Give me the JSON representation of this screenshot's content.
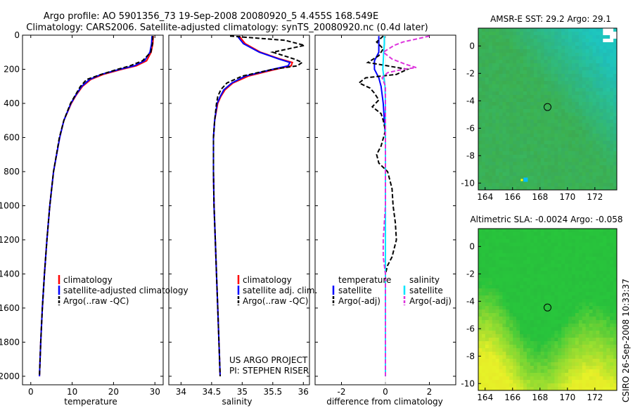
{
  "header": {
    "line1": "Argo profile: AO 5901356_73 19-Sep-2008 20080920_5 4.455S 168.549E",
    "line2": "Climatology: CARS2006. Satellite-adjusted climatology: synTS_20080920.nc (0.4d later)"
  },
  "credit": "CSIRO 26-Sep-2008 10:33:37",
  "colors": {
    "climatology": "#ff0000",
    "satellite": "#0000ff",
    "argo": "#000000",
    "salinity_satellite": "#00e5ff",
    "salinity_argo": "#dd33dd",
    "map_ocean": "#2fbf4f",
    "map_land": "#ffffff"
  },
  "chart_data": [
    {
      "type": "line",
      "name": "temperature-profile",
      "xlabel": "temperature",
      "xlim": [
        -2,
        32
      ],
      "xticks": [
        0,
        10,
        20,
        30
      ],
      "ylim": [
        2050,
        0
      ],
      "yticks": [
        0,
        200,
        400,
        600,
        800,
        1000,
        1200,
        1400,
        1600,
        1800,
        2000
      ],
      "legend": [
        "climatology",
        "satellite-adjusted climatology",
        "Argo(..raw -QC)"
      ],
      "series": [
        {
          "name": "climatology",
          "depth": [
            5,
            50,
            100,
            150,
            180,
            200,
            230,
            260,
            300,
            350,
            400,
            500,
            600,
            800,
            1000,
            1200,
            1400,
            1600,
            1800,
            2000
          ],
          "values": [
            29.6,
            29.5,
            29.1,
            28.0,
            25.5,
            22.0,
            17.5,
            14.5,
            12.5,
            11.0,
            9.8,
            8.0,
            7.0,
            5.5,
            4.6,
            3.9,
            3.3,
            2.8,
            2.4,
            2.1
          ]
        },
        {
          "name": "satellite-adjusted climatology",
          "depth": [
            5,
            50,
            100,
            150,
            180,
            200,
            230,
            260,
            300,
            350,
            400,
            500,
            600,
            800,
            1000,
            1200,
            1400,
            1600,
            1800,
            2000
          ],
          "values": [
            29.3,
            29.2,
            28.8,
            27.5,
            25.0,
            21.5,
            17.0,
            14.2,
            12.3,
            10.9,
            9.7,
            8.0,
            7.0,
            5.5,
            4.6,
            3.9,
            3.3,
            2.8,
            2.4,
            2.1
          ]
        },
        {
          "name": "Argo(..raw -QC)",
          "depth": [
            5,
            50,
            100,
            150,
            180,
            200,
            230,
            260,
            300,
            350,
            400,
            500,
            600,
            800,
            1000,
            1200,
            1400,
            1600,
            1800,
            2000
          ],
          "values": [
            29.5,
            29.4,
            29.0,
            27.0,
            24.0,
            21.0,
            17.0,
            13.5,
            12.0,
            10.8,
            9.6,
            8.0,
            6.9,
            5.5,
            4.6,
            3.9,
            3.3,
            2.8,
            2.4,
            2.1
          ]
        }
      ]
    },
    {
      "type": "line",
      "name": "salinity-profile",
      "xlabel": "salinity",
      "xlim": [
        33.8,
        36.1
      ],
      "xticks": [
        34,
        34.5,
        35,
        35.5,
        36
      ],
      "ylim": [
        2050,
        0
      ],
      "legend": [
        "climatology",
        "satellite adj. clim.",
        "Argo(..raw -QC)"
      ],
      "annotation": [
        "US ARGO PROJECT",
        "PI: STEPHEN RISER"
      ],
      "series": [
        {
          "name": "climatology",
          "depth": [
            5,
            50,
            100,
            140,
            160,
            180,
            200,
            240,
            280,
            320,
            360,
            400,
            500,
            600,
            800,
            1000,
            1200,
            1400,
            1600,
            1800,
            2000
          ],
          "values": [
            34.95,
            35.05,
            35.3,
            35.62,
            35.82,
            35.8,
            35.55,
            35.1,
            34.85,
            34.72,
            34.65,
            34.6,
            34.55,
            34.53,
            34.53,
            34.54,
            34.56,
            34.58,
            34.6,
            34.62,
            34.64
          ]
        },
        {
          "name": "satellite adj. clim.",
          "depth": [
            5,
            50,
            100,
            140,
            160,
            180,
            200,
            240,
            280,
            320,
            360,
            400,
            500,
            600,
            800,
            1000,
            1200,
            1400,
            1600,
            1800,
            2000
          ],
          "values": [
            34.92,
            35.02,
            35.28,
            35.6,
            35.78,
            35.75,
            35.5,
            35.05,
            34.83,
            34.7,
            34.64,
            34.59,
            34.55,
            34.53,
            34.53,
            34.54,
            34.56,
            34.58,
            34.6,
            34.62,
            34.64
          ]
        },
        {
          "name": "Argo(..raw -QC)",
          "depth": [
            5,
            30,
            60,
            100,
            140,
            160,
            180,
            200,
            240,
            280,
            320,
            360,
            400,
            500,
            600,
            800,
            1000,
            1200,
            1400,
            1600,
            1800,
            2000
          ],
          "values": [
            34.8,
            35.7,
            36.02,
            35.5,
            35.85,
            35.98,
            35.9,
            35.5,
            35.0,
            34.75,
            34.65,
            34.6,
            34.58,
            34.55,
            34.53,
            34.53,
            34.54,
            34.56,
            34.58,
            34.6,
            34.62,
            34.64
          ]
        }
      ]
    },
    {
      "type": "line",
      "name": "difference-profile",
      "xlabel": "difference from climatology",
      "xlim": [
        -3.2,
        3.2
      ],
      "xticks": [
        -2,
        0,
        2
      ],
      "ylim": [
        2050,
        0
      ],
      "legend_headers": [
        "temperature",
        "salinity"
      ],
      "legend": [
        "satellite",
        "Argo(-adj)",
        "satellite",
        "Argo(-adj)"
      ],
      "series": [
        {
          "name": "temperature satellite",
          "depth": [
            5,
            50,
            100,
            150,
            200,
            250,
            300,
            400,
            600,
            800,
            1000,
            1200,
            1400,
            1600,
            1800,
            2000
          ],
          "values": [
            -0.3,
            -0.3,
            -0.3,
            -0.5,
            -0.5,
            -0.3,
            -0.2,
            -0.1,
            0,
            0,
            0,
            0,
            0,
            0,
            0,
            0
          ]
        },
        {
          "name": "temperature Argo(-adj)",
          "depth": [
            5,
            40,
            80,
            120,
            160,
            200,
            230,
            250,
            280,
            310,
            340,
            380,
            420,
            460,
            500,
            560,
            650,
            700,
            750,
            800,
            850,
            900,
            1000,
            1100,
            1200,
            1300,
            1350,
            1400,
            1500,
            1600,
            1800,
            2000
          ],
          "values": [
            -0.1,
            -0.4,
            -0.1,
            -0.3,
            -0.8,
            1.0,
            0.5,
            -0.9,
            -1.2,
            -0.7,
            -0.5,
            -0.3,
            -0.6,
            -0.2,
            -0.1,
            0,
            -0.2,
            -0.4,
            -0.3,
            0.1,
            0.2,
            0.3,
            0.35,
            0.45,
            0.5,
            0.3,
            0.1,
            0,
            0,
            0,
            0,
            0
          ]
        },
        {
          "name": "salinity satellite",
          "depth": [
            5,
            50,
            100,
            150,
            200,
            300,
            400,
            600,
            800,
            1000,
            1200,
            1400,
            1600,
            1800,
            2000
          ],
          "values": [
            -0.05,
            -0.05,
            -0.08,
            -0.1,
            -0.12,
            -0.02,
            0,
            0,
            0,
            0,
            0,
            0,
            0,
            0,
            0
          ]
        },
        {
          "name": "salinity Argo(-adj)",
          "depth": [
            5,
            20,
            40,
            60,
            100,
            140,
            170,
            190,
            200,
            220,
            250,
            300,
            400,
            600,
            800,
            1000,
            1200,
            1300,
            1400,
            1600,
            1800,
            2000
          ],
          "values": [
            2.0,
            1.5,
            0.8,
            0.4,
            -0.1,
            0.3,
            0.9,
            1.4,
            0.8,
            0.1,
            -0.15,
            0,
            0,
            0,
            0,
            0,
            -0.1,
            -0.1,
            0,
            0,
            0,
            0
          ]
        }
      ]
    },
    {
      "type": "heatmap",
      "name": "sst-map",
      "title": "AMSR-E SST: 29.2 Argo: 29.1",
      "xticks": [
        164,
        166,
        168,
        170,
        172
      ],
      "yticks": [
        0,
        -2,
        -4,
        -6,
        -8,
        -10
      ],
      "xlim": [
        163.5,
        173.6
      ],
      "ylim": [
        -10.5,
        1.3
      ],
      "marker": {
        "lon": 168.549,
        "lat": -4.455
      }
    },
    {
      "type": "heatmap",
      "name": "sla-map",
      "title": "Altimetric SLA: -0.0024 Argo: -0.058",
      "xticks": [
        164,
        166,
        168,
        170,
        172
      ],
      "yticks": [
        0,
        -2,
        -4,
        -6,
        -8,
        -10
      ],
      "xlim": [
        163.5,
        173.6
      ],
      "ylim": [
        -10.5,
        1.3
      ],
      "marker": {
        "lon": 168.549,
        "lat": -4.455
      }
    }
  ]
}
